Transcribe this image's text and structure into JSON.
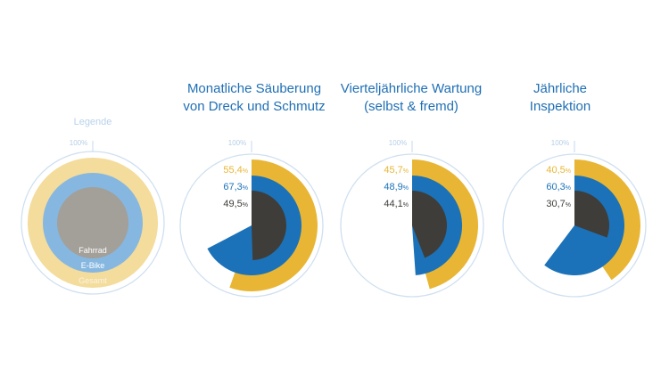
{
  "colors": {
    "gesamt": "#e8b634",
    "ebike": "#1b72b8",
    "fahrrad": "#3f3d39",
    "outline": "#cfe0f0",
    "legend_gesamt": "#f3dc9c",
    "legend_ebike": "#86b7e0",
    "legend_fahrrad": "#a39f99",
    "hundred_label": "#b6cfe6",
    "legend_title": "#b8d2ea"
  },
  "legend": {
    "title": "Legende",
    "hundred": "100%",
    "labels": {
      "fahrrad": "Fahrrad",
      "ebike": "E-Bike",
      "gesamt": "Gesamt"
    }
  },
  "chart_data": [
    {
      "type": "radial-bar",
      "title": "Monatliche Säuberung\nvon Dreck und Schmutz",
      "hundred": "100%",
      "series": [
        {
          "name": "Gesamt",
          "value": 55.4,
          "label": "55,4"
        },
        {
          "name": "E-Bike",
          "value": 67.3,
          "label": "67,3"
        },
        {
          "name": "Fahrrad",
          "value": 49.5,
          "label": "49,5"
        }
      ]
    },
    {
      "type": "radial-bar",
      "title": "Vierteljährliche Wartung\n(selbst & fremd)",
      "hundred": "100%",
      "series": [
        {
          "name": "Gesamt",
          "value": 45.7,
          "label": "45,7"
        },
        {
          "name": "E-Bike",
          "value": 48.9,
          "label": "48,9"
        },
        {
          "name": "Fahrrad",
          "value": 44.1,
          "label": "44,1"
        }
      ]
    },
    {
      "type": "radial-bar",
      "title": "Jährliche\nInspektion",
      "hundred": "100%",
      "series": [
        {
          "name": "Gesamt",
          "value": 40.5,
          "label": "40,5"
        },
        {
          "name": "E-Bike",
          "value": 60.3,
          "label": "60,3"
        },
        {
          "name": "Fahrrad",
          "value": 30.7,
          "label": "30,7"
        }
      ]
    }
  ]
}
